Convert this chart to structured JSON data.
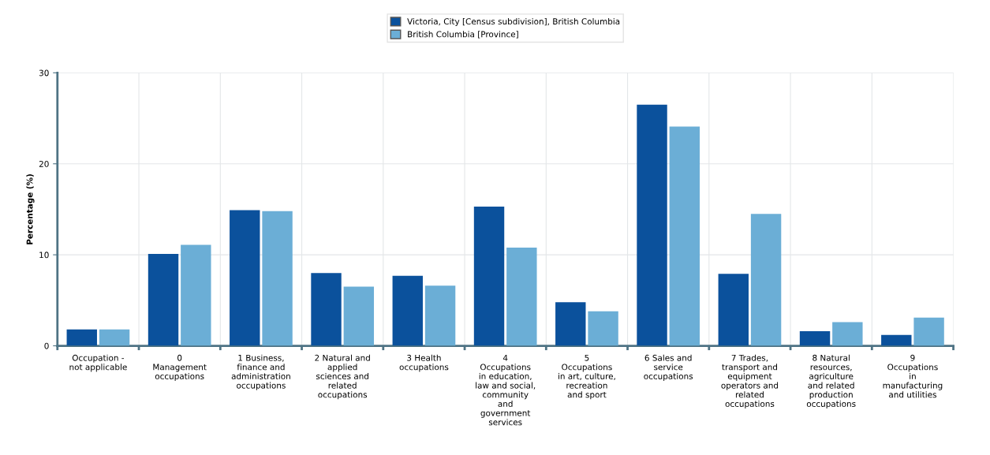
{
  "chart_data": {
    "type": "bar",
    "ylabel": "Percentage (%)",
    "categories": [
      "Occupation -\nnot applicable",
      "0\nManagement\noccupations",
      "1 Business,\nfinance and\nadministration\noccupations",
      "2 Natural and\napplied\nsciences and\nrelated\noccupations",
      "3 Health\noccupations",
      "4\nOccupations\nin education,\nlaw and social,\ncommunity\nand\ngovernment\nservices",
      "5\nOccupations\nin art, culture,\nrecreation\nand sport",
      "6 Sales and\nservice\noccupations",
      "7 Trades,\ntransport and\nequipment\noperators and\nrelated\noccupations",
      "8 Natural\nresources,\nagriculture\nand related\nproduction\noccupations",
      "9\nOccupations\nin\nmanufacturing\nand utilities"
    ],
    "series": [
      {
        "name": "Victoria, City [Census subdivision], British Columbia",
        "color": "#0b519c",
        "values": [
          1.8,
          10.1,
          14.9,
          8.0,
          7.7,
          15.3,
          4.8,
          26.5,
          7.9,
          1.6,
          1.2
        ]
      },
      {
        "name": "British Columbia [Province]",
        "color": "#6baed6",
        "values": [
          1.8,
          11.1,
          14.8,
          6.5,
          6.6,
          10.8,
          3.8,
          24.1,
          14.5,
          2.6,
          3.1
        ]
      }
    ],
    "ylim": [
      0,
      30
    ],
    "yticks": [
      0,
      10,
      20,
      30
    ],
    "grid": true,
    "legend": "top"
  }
}
